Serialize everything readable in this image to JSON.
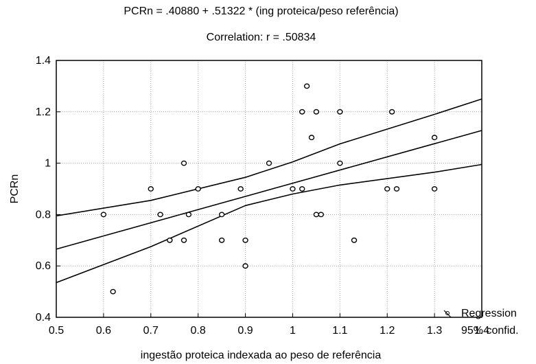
{
  "chart_data": {
    "type": "scatter",
    "title": "PCRn = .40880 + .51322 * (ing proteica/peso referência)",
    "subtitle": "Correlation: r = .50834",
    "xlabel": "ingestão proteica indexada ao peso de referência",
    "ylabel": "PCRn",
    "xlim": [
      0.5,
      1.4
    ],
    "ylim": [
      0.4,
      1.4
    ],
    "x_ticks": [
      "0.5",
      "0.6",
      "0.7",
      "0.8",
      "0.9",
      "1",
      "1.1",
      "1.2",
      "1.3",
      "1.4"
    ],
    "y_ticks": [
      "0.4",
      "0.6",
      "0.8",
      "1",
      "1.2",
      "1.4"
    ],
    "grid": true,
    "legend": {
      "position": "bottom-right",
      "entries": [
        "Regression",
        "95% confid."
      ]
    },
    "regression": {
      "intercept": 0.4088,
      "slope": 0.51322
    },
    "confidence_band": {
      "x": [
        0.5,
        0.7,
        0.9,
        1.0,
        1.1,
        1.3,
        1.4
      ],
      "upper": [
        0.795,
        0.855,
        0.945,
        1.005,
        1.075,
        1.19,
        1.25
      ],
      "lower": [
        0.535,
        0.675,
        0.835,
        0.88,
        0.915,
        0.965,
        0.995
      ]
    },
    "points": [
      {
        "x": 0.6,
        "y": 0.8
      },
      {
        "x": 0.62,
        "y": 0.5
      },
      {
        "x": 0.7,
        "y": 0.9
      },
      {
        "x": 0.72,
        "y": 0.8
      },
      {
        "x": 0.74,
        "y": 0.7
      },
      {
        "x": 0.77,
        "y": 0.7
      },
      {
        "x": 0.77,
        "y": 1.0
      },
      {
        "x": 0.78,
        "y": 0.8
      },
      {
        "x": 0.8,
        "y": 0.9
      },
      {
        "x": 0.85,
        "y": 0.8
      },
      {
        "x": 0.85,
        "y": 0.7
      },
      {
        "x": 0.89,
        "y": 0.9
      },
      {
        "x": 0.9,
        "y": 0.7
      },
      {
        "x": 0.9,
        "y": 0.6
      },
      {
        "x": 0.95,
        "y": 1.0
      },
      {
        "x": 1.0,
        "y": 0.9
      },
      {
        "x": 1.02,
        "y": 0.9
      },
      {
        "x": 1.02,
        "y": 1.2
      },
      {
        "x": 1.03,
        "y": 1.3
      },
      {
        "x": 1.04,
        "y": 1.1
      },
      {
        "x": 1.05,
        "y": 1.2
      },
      {
        "x": 1.05,
        "y": 0.8
      },
      {
        "x": 1.06,
        "y": 0.8
      },
      {
        "x": 1.1,
        "y": 1.2
      },
      {
        "x": 1.1,
        "y": 1.0
      },
      {
        "x": 1.13,
        "y": 0.7
      },
      {
        "x": 1.2,
        "y": 0.9
      },
      {
        "x": 1.21,
        "y": 1.2
      },
      {
        "x": 1.22,
        "y": 0.9
      },
      {
        "x": 1.3,
        "y": 1.1
      },
      {
        "x": 1.3,
        "y": 0.9
      }
    ],
    "colors": {
      "line": "#000000",
      "grid": "#a0a0a0",
      "background": "#ffffff"
    }
  }
}
